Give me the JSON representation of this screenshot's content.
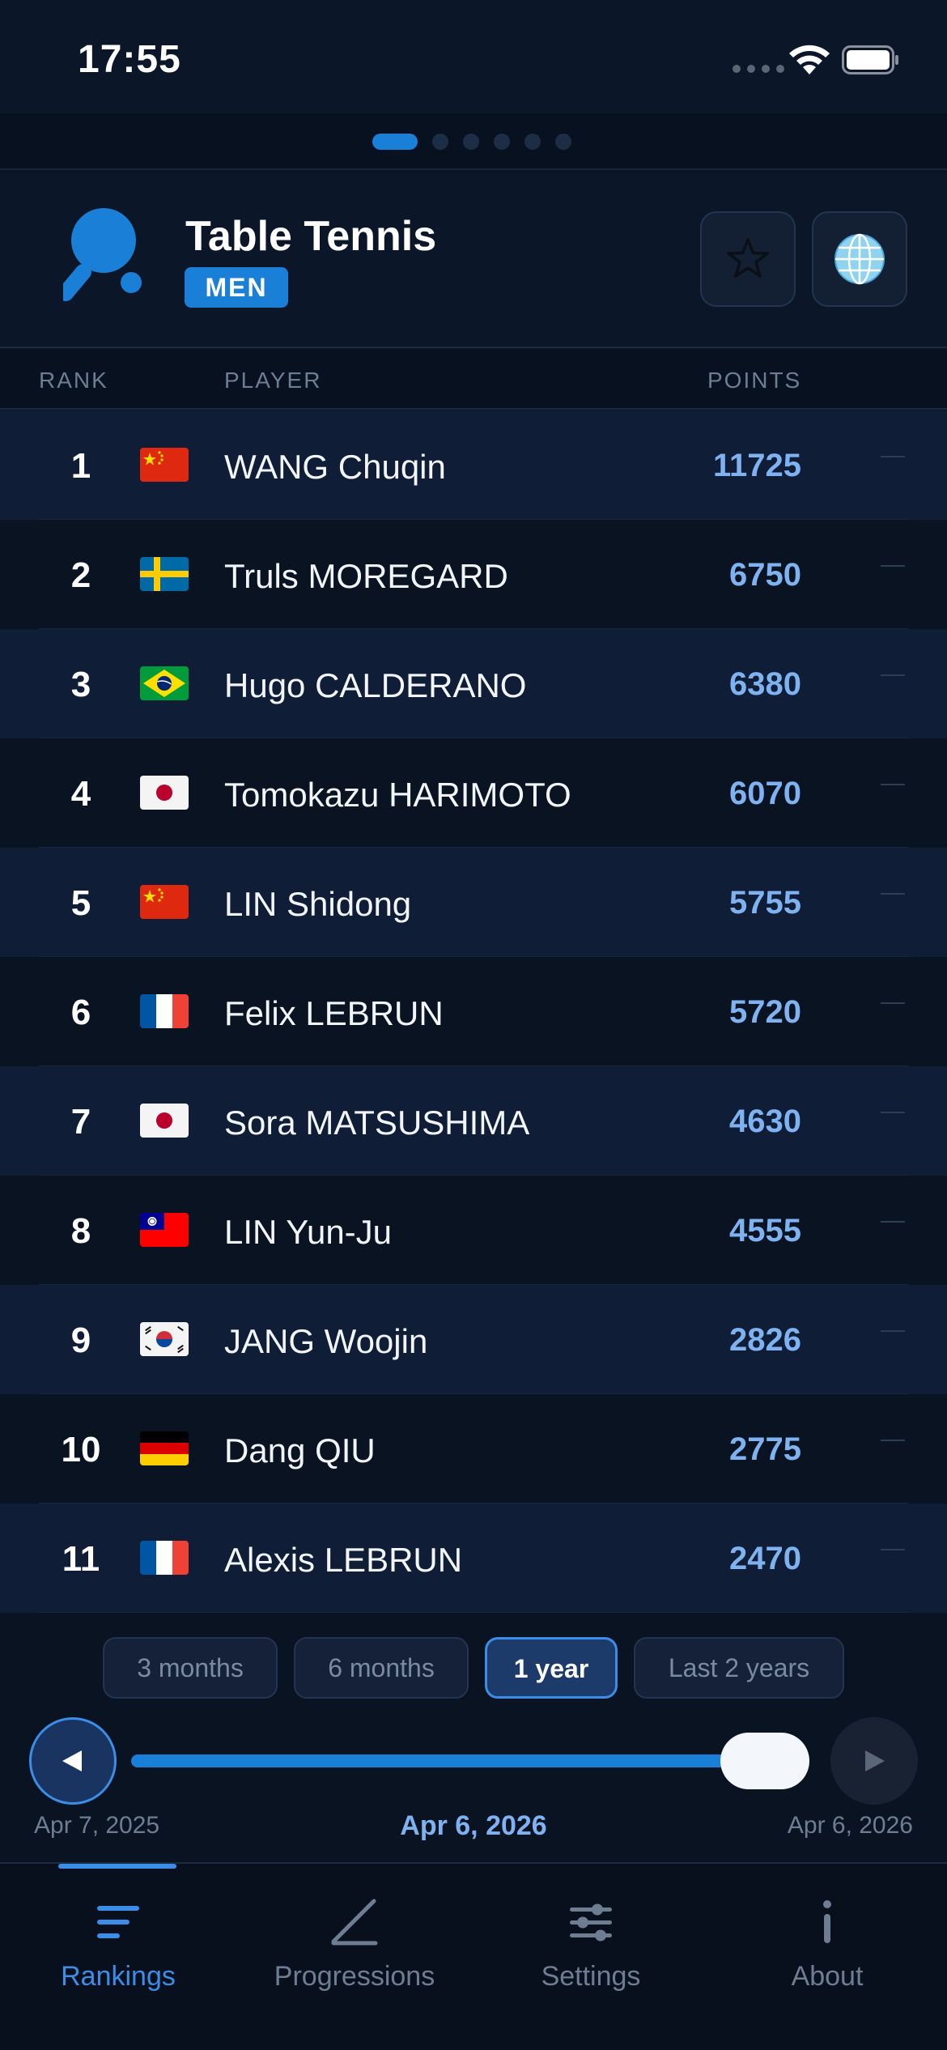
{
  "status_bar": {
    "time": "17:55"
  },
  "header": {
    "sport": "Table Tennis",
    "gender": "MEN",
    "icons": {
      "sport": "table-tennis-paddle-icon",
      "favorite": "star-icon",
      "region": "globe-icon"
    }
  },
  "pager": {
    "count": 6,
    "active_index": 0
  },
  "columns": {
    "rank": "RANK",
    "player": "PLAYER",
    "points": "POINTS"
  },
  "rankings": [
    {
      "rank": "1",
      "country": "CN",
      "name": "WANG Chuqin",
      "points": "11725",
      "trend": "—"
    },
    {
      "rank": "2",
      "country": "SE",
      "name": "Truls MOREGARD",
      "points": "6750",
      "trend": "—"
    },
    {
      "rank": "3",
      "country": "BR",
      "name": "Hugo CALDERANO",
      "points": "6380",
      "trend": "—"
    },
    {
      "rank": "4",
      "country": "JP",
      "name": "Tomokazu HARIMOTO",
      "points": "6070",
      "trend": "—"
    },
    {
      "rank": "5",
      "country": "CN",
      "name": "LIN Shidong",
      "points": "5755",
      "trend": "—"
    },
    {
      "rank": "6",
      "country": "FR",
      "name": "Felix LEBRUN",
      "points": "5720",
      "trend": "—"
    },
    {
      "rank": "7",
      "country": "JP",
      "name": "Sora MATSUSHIMA",
      "points": "4630",
      "trend": "—"
    },
    {
      "rank": "8",
      "country": "TW",
      "name": "LIN Yun-Ju",
      "points": "4555",
      "trend": "—"
    },
    {
      "rank": "9",
      "country": "KR",
      "name": "JANG Woojin",
      "points": "2826",
      "trend": "—"
    },
    {
      "rank": "10",
      "country": "DE",
      "name": "Dang QIU",
      "points": "2775",
      "trend": "—"
    },
    {
      "rank": "11",
      "country": "FR",
      "name": "Alexis LEBRUN",
      "points": "2470",
      "trend": "—"
    }
  ],
  "periods": {
    "options": [
      "3 months",
      "6 months",
      "1 year",
      "Last 2 years"
    ],
    "selected": "1 year"
  },
  "timeline": {
    "start": "Apr 7, 2025",
    "current": "Apr 6, 2026",
    "end": "Apr 6, 2026",
    "position": 1.0
  },
  "tabs": [
    {
      "label": "Rankings",
      "icon": "rankings-icon",
      "active": true
    },
    {
      "label": "Progressions",
      "icon": "progressions-icon",
      "active": false
    },
    {
      "label": "Settings",
      "icon": "sliders-icon",
      "active": false
    },
    {
      "label": "About",
      "icon": "info-icon",
      "active": false
    }
  ],
  "colors": {
    "accent": "#1a7fd6",
    "points": "#7fb2f0",
    "background": "#0a1322"
  }
}
